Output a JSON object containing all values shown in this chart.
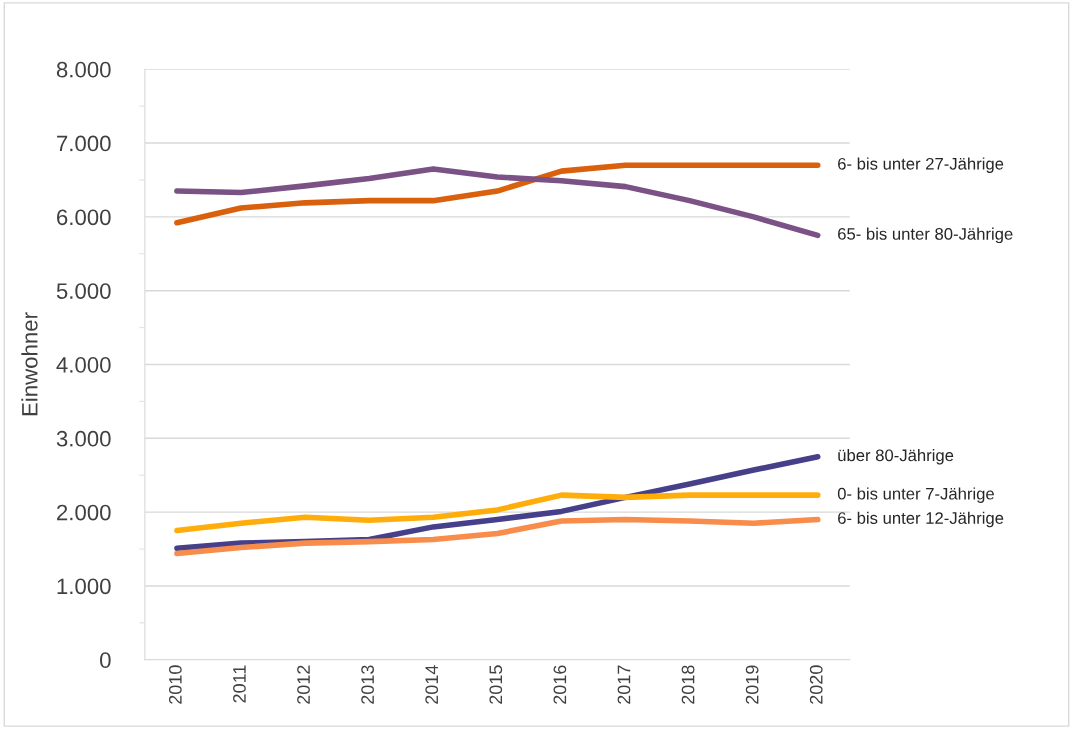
{
  "chart_data": {
    "type": "line",
    "ylabel": "Einwohner",
    "categories": [
      "2010",
      "2011",
      "2012",
      "2013",
      "2014",
      "2015",
      "2016",
      "2017",
      "2018",
      "2019",
      "2020"
    ],
    "series": [
      {
        "name": "6- bis unter 27-Jährige",
        "color": "#d9600d",
        "values": [
          5920,
          6120,
          6190,
          6220,
          6220,
          6350,
          6620,
          6700,
          6700,
          6700,
          6700
        ]
      },
      {
        "name": "65- bis unter 80-Jährige",
        "color": "#7b5286",
        "values": [
          6350,
          6330,
          6420,
          6520,
          6650,
          6540,
          6490,
          6410,
          6220,
          6000,
          5750
        ]
      },
      {
        "name": "über 80-Jährige",
        "color": "#463f8a",
        "values": [
          1510,
          1580,
          1600,
          1630,
          1800,
          1900,
          2010,
          2200,
          2380,
          2570,
          2750
        ]
      },
      {
        "name": "0- bis unter 7-Jährige",
        "color": "#ffad0a",
        "values": [
          1750,
          1850,
          1930,
          1890,
          1930,
          2030,
          2230,
          2200,
          2230,
          2230,
          2230
        ]
      },
      {
        "name": "6- bis unter 12-Jährige",
        "color": "#f88c4b",
        "values": [
          1440,
          1520,
          1580,
          1600,
          1630,
          1710,
          1880,
          1900,
          1880,
          1850,
          1900
        ]
      }
    ],
    "ylim": [
      0,
      8000
    ],
    "yticks": [
      {
        "value": 0,
        "label": "0"
      },
      {
        "value": 500,
        "label": null
      },
      {
        "value": 1000,
        "label": "1.000"
      },
      {
        "value": 1500,
        "label": null
      },
      {
        "value": 2000,
        "label": "2.000"
      },
      {
        "value": 2500,
        "label": null
      },
      {
        "value": 3000,
        "label": "3.000"
      },
      {
        "value": 3500,
        "label": null
      },
      {
        "value": 4000,
        "label": "4.000"
      },
      {
        "value": 4500,
        "label": null
      },
      {
        "value": 5000,
        "label": "5.000"
      },
      {
        "value": 5500,
        "label": null
      },
      {
        "value": 6000,
        "label": "6.000"
      },
      {
        "value": 6500,
        "label": null
      },
      {
        "value": 7000,
        "label": "7.000"
      },
      {
        "value": 7500,
        "label": null
      },
      {
        "value": 8000,
        "label": "8.000"
      }
    ],
    "grid": "y",
    "marker": "none",
    "line_style": "solid"
  }
}
